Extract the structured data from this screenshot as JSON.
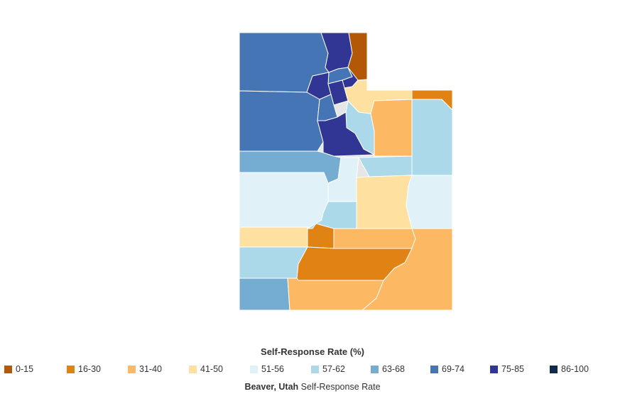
{
  "legend": {
    "title": "Self-Response Rate (%)",
    "items": [
      {
        "label": "0-15",
        "color": "#b35806"
      },
      {
        "label": "16-30",
        "color": "#e08214"
      },
      {
        "label": "31-40",
        "color": "#fdb863"
      },
      {
        "label": "41-50",
        "color": "#fee0a0"
      },
      {
        "label": "51-56",
        "color": "#e0f1f8"
      },
      {
        "label": "57-62",
        "color": "#abd9e9"
      },
      {
        "label": "63-68",
        "color": "#74add1"
      },
      {
        "label": "69-74",
        "color": "#4575b4"
      },
      {
        "label": "75-85",
        "color": "#313695"
      },
      {
        "label": "86-100",
        "color": "#0f2a4a"
      }
    ]
  },
  "caption": {
    "place": "Beaver, Utah",
    "suffix": " Self-Response Rate"
  }
}
